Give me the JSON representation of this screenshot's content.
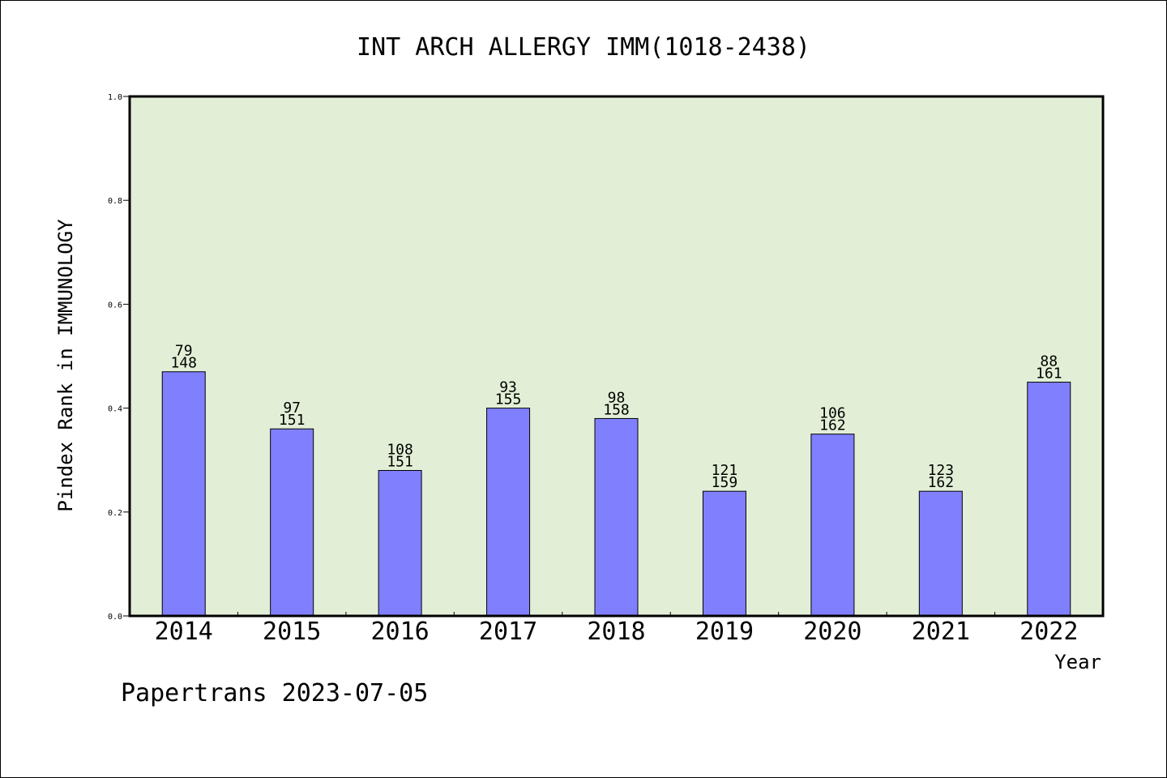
{
  "chart_data": {
    "type": "bar",
    "title": "INT ARCH ALLERGY IMM(1018-2438)",
    "xlabel": "Year",
    "ylabel": "Pindex Rank in IMMUNOLOGY",
    "ylim": [
      0,
      1.0
    ],
    "yticks": [
      "0.0",
      "0.2",
      "0.4",
      "0.6",
      "0.8",
      "1.0"
    ],
    "categories": [
      "2014",
      "2015",
      "2016",
      "2017",
      "2018",
      "2019",
      "2020",
      "2021",
      "2022"
    ],
    "values": [
      0.47,
      0.36,
      0.28,
      0.4,
      0.38,
      0.24,
      0.35,
      0.24,
      0.45
    ],
    "label_top": [
      "79",
      "97",
      "108",
      "93",
      "98",
      "121",
      "106",
      "123",
      "88"
    ],
    "label_bottom": [
      "148",
      "151",
      "151",
      "155",
      "158",
      "159",
      "162",
      "162",
      "161"
    ],
    "grid": false,
    "colors": {
      "plot_bg": "#e2efd6",
      "bar": "#8080ff",
      "bar_edge": "#000000"
    }
  },
  "footer": {
    "text": "Papertrans 2023-07-05"
  }
}
